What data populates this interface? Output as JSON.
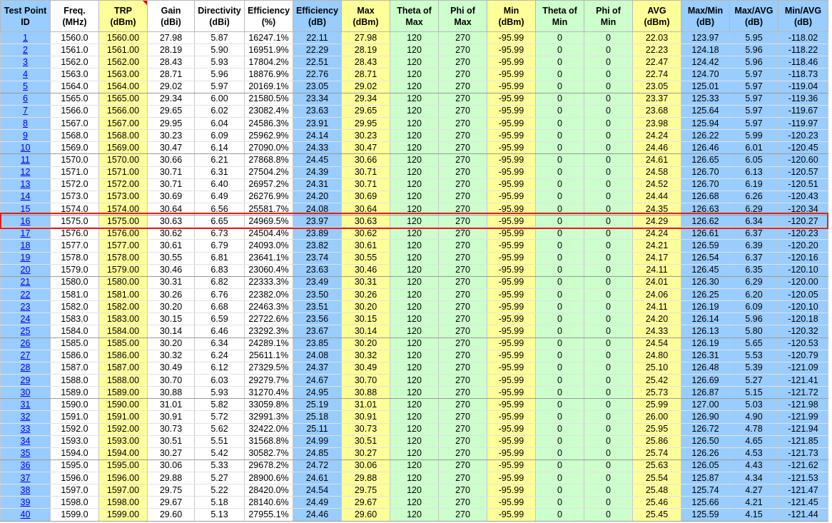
{
  "table": {
    "header": [
      [
        "Test Point",
        "ID"
      ],
      [
        "Freq.",
        "(MHz)"
      ],
      [
        "TRP",
        "(dBm)"
      ],
      [
        "Gain",
        "(dBi)"
      ],
      [
        "Directivity",
        "(dBi)"
      ],
      [
        "Efficiency",
        "(%)"
      ],
      [
        "Efficiency",
        "(dB)"
      ],
      [
        "Max",
        "(dBm)"
      ],
      [
        "Theta of",
        "Max"
      ],
      [
        "Phi of",
        "Max"
      ],
      [
        "Min",
        "(dBm)"
      ],
      [
        "Theta of",
        "Min"
      ],
      [
        "Phi of",
        "Min"
      ],
      [
        "AVG",
        "(dBm)"
      ],
      [
        "Max/Min",
        "(dB)"
      ],
      [
        "Max/AVG",
        "(dB)"
      ],
      [
        "Min/AVG",
        "(dB)"
      ]
    ],
    "rows": [
      [
        "1",
        "1560.0",
        "1560.00",
        "27.98",
        "5.87",
        "16247.1%",
        "22.11",
        "27.98",
        "120",
        "270",
        "-95.99",
        "0",
        "0",
        "22.03",
        "123.97",
        "5.95",
        "-118.02"
      ],
      [
        "2",
        "1561.0",
        "1561.00",
        "28.19",
        "5.90",
        "16951.9%",
        "22.29",
        "28.19",
        "120",
        "270",
        "-95.99",
        "0",
        "0",
        "22.23",
        "124.18",
        "5.96",
        "-118.22"
      ],
      [
        "3",
        "1562.0",
        "1562.00",
        "28.43",
        "5.93",
        "17804.2%",
        "22.51",
        "28.43",
        "120",
        "270",
        "-95.99",
        "0",
        "0",
        "22.47",
        "124.42",
        "5.96",
        "-118.46"
      ],
      [
        "4",
        "1563.0",
        "1563.00",
        "28.71",
        "5.96",
        "18876.9%",
        "22.76",
        "28.71",
        "120",
        "270",
        "-95.99",
        "0",
        "0",
        "22.74",
        "124.70",
        "5.97",
        "-118.73"
      ],
      [
        "5",
        "1564.0",
        "1564.00",
        "29.02",
        "5.97",
        "20169.1%",
        "23.05",
        "29.02",
        "120",
        "270",
        "-95.99",
        "0",
        "0",
        "23.05",
        "125.01",
        "5.97",
        "-119.04"
      ],
      [
        "6",
        "1565.0",
        "1565.00",
        "29.34",
        "6.00",
        "21580.5%",
        "23.34",
        "29.34",
        "120",
        "270",
        "-95.99",
        "0",
        "0",
        "23.37",
        "125.33",
        "5.97",
        "-119.36"
      ],
      [
        "7",
        "1566.0",
        "1566.00",
        "29.65",
        "6.02",
        "23082.4%",
        "23.63",
        "29.65",
        "120",
        "270",
        "-95.99",
        "0",
        "0",
        "23.68",
        "125.64",
        "5.97",
        "-119.67"
      ],
      [
        "8",
        "1567.0",
        "1567.00",
        "29.95",
        "6.04",
        "24586.3%",
        "23.91",
        "29.95",
        "120",
        "270",
        "-95.99",
        "0",
        "0",
        "23.98",
        "125.94",
        "5.97",
        "-119.97"
      ],
      [
        "9",
        "1568.0",
        "1568.00",
        "30.23",
        "6.09",
        "25962.9%",
        "24.14",
        "30.23",
        "120",
        "270",
        "-95.99",
        "0",
        "0",
        "24.24",
        "126.22",
        "5.99",
        "-120.23"
      ],
      [
        "10",
        "1569.0",
        "1569.00",
        "30.47",
        "6.14",
        "27090.0%",
        "24.33",
        "30.47",
        "120",
        "270",
        "-95.99",
        "0",
        "0",
        "24.46",
        "126.46",
        "6.01",
        "-120.45"
      ],
      [
        "11",
        "1570.0",
        "1570.00",
        "30.66",
        "6.21",
        "27868.8%",
        "24.45",
        "30.66",
        "120",
        "270",
        "-95.99",
        "0",
        "0",
        "24.61",
        "126.65",
        "6.05",
        "-120.60"
      ],
      [
        "12",
        "1571.0",
        "1571.00",
        "30.71",
        "6.31",
        "27504.2%",
        "24.39",
        "30.71",
        "120",
        "270",
        "-95.99",
        "0",
        "0",
        "24.58",
        "126.70",
        "6.13",
        "-120.57"
      ],
      [
        "13",
        "1572.0",
        "1572.00",
        "30.71",
        "6.40",
        "26957.2%",
        "24.31",
        "30.71",
        "120",
        "270",
        "-95.99",
        "0",
        "0",
        "24.52",
        "126.70",
        "6.19",
        "-120.51"
      ],
      [
        "14",
        "1573.0",
        "1573.00",
        "30.69",
        "6.49",
        "26276.9%",
        "24.20",
        "30.69",
        "120",
        "270",
        "-95.99",
        "0",
        "0",
        "24.44",
        "126.68",
        "6.26",
        "-120.43"
      ],
      [
        "15",
        "1574.0",
        "1574.00",
        "30.64",
        "6.56",
        "25581.7%",
        "24.08",
        "30.64",
        "120",
        "270",
        "-95.99",
        "0",
        "0",
        "24.35",
        "126.63",
        "6.29",
        "-120.34"
      ],
      [
        "16",
        "1575.0",
        "1575.00",
        "30.63",
        "6.65",
        "24969.5%",
        "23.97",
        "30.63",
        "120",
        "270",
        "-95.99",
        "0",
        "0",
        "24.29",
        "126.62",
        "6.34",
        "-120.27"
      ],
      [
        "17",
        "1576.0",
        "1576.00",
        "30.62",
        "6.73",
        "24504.4%",
        "23.89",
        "30.62",
        "120",
        "270",
        "-95.99",
        "0",
        "0",
        "24.24",
        "126.61",
        "6.37",
        "-120.23"
      ],
      [
        "18",
        "1577.0",
        "1577.00",
        "30.61",
        "6.79",
        "24093.0%",
        "23.82",
        "30.61",
        "120",
        "270",
        "-95.99",
        "0",
        "0",
        "24.21",
        "126.59",
        "6.39",
        "-120.20"
      ],
      [
        "19",
        "1578.0",
        "1578.00",
        "30.55",
        "6.81",
        "23641.1%",
        "23.74",
        "30.55",
        "120",
        "270",
        "-95.99",
        "0",
        "0",
        "24.17",
        "126.54",
        "6.37",
        "-120.16"
      ],
      [
        "20",
        "1579.0",
        "1579.00",
        "30.46",
        "6.83",
        "23060.4%",
        "23.63",
        "30.46",
        "120",
        "270",
        "-95.99",
        "0",
        "0",
        "24.11",
        "126.45",
        "6.35",
        "-120.10"
      ],
      [
        "21",
        "1580.0",
        "1580.00",
        "30.31",
        "6.82",
        "22333.3%",
        "23.49",
        "30.31",
        "120",
        "270",
        "-95.99",
        "0",
        "0",
        "24.01",
        "126.30",
        "6.29",
        "-120.00"
      ],
      [
        "22",
        "1581.0",
        "1581.00",
        "30.26",
        "6.76",
        "22382.0%",
        "23.50",
        "30.26",
        "120",
        "270",
        "-95.99",
        "0",
        "0",
        "24.06",
        "126.25",
        "6.20",
        "-120.05"
      ],
      [
        "23",
        "1582.0",
        "1582.00",
        "30.20",
        "6.68",
        "22463.3%",
        "23.51",
        "30.20",
        "120",
        "270",
        "-95.99",
        "0",
        "0",
        "24.11",
        "126.19",
        "6.09",
        "-120.10"
      ],
      [
        "24",
        "1583.0",
        "1583.00",
        "30.15",
        "6.59",
        "22722.6%",
        "23.56",
        "30.15",
        "120",
        "270",
        "-95.99",
        "0",
        "0",
        "24.20",
        "126.14",
        "5.96",
        "-120.18"
      ],
      [
        "25",
        "1584.0",
        "1584.00",
        "30.14",
        "6.46",
        "23292.3%",
        "23.67",
        "30.14",
        "120",
        "270",
        "-95.99",
        "0",
        "0",
        "24.33",
        "126.13",
        "5.80",
        "-120.32"
      ],
      [
        "26",
        "1585.0",
        "1585.00",
        "30.20",
        "6.34",
        "24289.1%",
        "23.85",
        "30.20",
        "120",
        "270",
        "-95.99",
        "0",
        "0",
        "24.54",
        "126.19",
        "5.65",
        "-120.53"
      ],
      [
        "27",
        "1586.0",
        "1586.00",
        "30.32",
        "6.24",
        "25611.1%",
        "24.08",
        "30.32",
        "120",
        "270",
        "-95.99",
        "0",
        "0",
        "24.80",
        "126.31",
        "5.53",
        "-120.79"
      ],
      [
        "28",
        "1587.0",
        "1587.00",
        "30.49",
        "6.12",
        "27329.5%",
        "24.37",
        "30.49",
        "120",
        "270",
        "-95.99",
        "0",
        "0",
        "25.10",
        "126.48",
        "5.39",
        "-121.09"
      ],
      [
        "29",
        "1588.0",
        "1588.00",
        "30.70",
        "6.03",
        "29279.7%",
        "24.67",
        "30.70",
        "120",
        "270",
        "-95.99",
        "0",
        "0",
        "25.42",
        "126.69",
        "5.27",
        "-121.41"
      ],
      [
        "30",
        "1589.0",
        "1589.00",
        "30.88",
        "5.93",
        "31270.4%",
        "24.95",
        "30.88",
        "120",
        "270",
        "-95.99",
        "0",
        "0",
        "25.73",
        "126.87",
        "5.15",
        "-121.72"
      ],
      [
        "31",
        "1590.0",
        "1590.00",
        "31.01",
        "5.82",
        "33059.8%",
        "25.19",
        "31.01",
        "120",
        "270",
        "-95.99",
        "0",
        "0",
        "25.99",
        "127.00",
        "5.03",
        "-121.98"
      ],
      [
        "32",
        "1591.0",
        "1591.00",
        "30.91",
        "5.72",
        "32991.3%",
        "25.18",
        "30.91",
        "120",
        "270",
        "-95.99",
        "0",
        "0",
        "26.00",
        "126.90",
        "4.90",
        "-121.99"
      ],
      [
        "33",
        "1592.0",
        "1592.00",
        "30.73",
        "5.62",
        "32422.0%",
        "25.11",
        "30.73",
        "120",
        "270",
        "-95.99",
        "0",
        "0",
        "25.95",
        "126.72",
        "4.78",
        "-121.94"
      ],
      [
        "34",
        "1593.0",
        "1593.00",
        "30.51",
        "5.51",
        "31568.8%",
        "24.99",
        "30.51",
        "120",
        "270",
        "-95.99",
        "0",
        "0",
        "25.86",
        "126.50",
        "4.65",
        "-121.85"
      ],
      [
        "35",
        "1594.0",
        "1594.00",
        "30.27",
        "5.42",
        "30582.7%",
        "24.85",
        "30.27",
        "120",
        "270",
        "-95.99",
        "0",
        "0",
        "25.74",
        "126.26",
        "4.53",
        "-121.73"
      ],
      [
        "36",
        "1595.0",
        "1595.00",
        "30.06",
        "5.33",
        "29678.2%",
        "24.72",
        "30.06",
        "120",
        "270",
        "-95.99",
        "0",
        "0",
        "25.63",
        "126.05",
        "4.43",
        "-121.62"
      ],
      [
        "37",
        "1596.0",
        "1596.00",
        "29.88",
        "5.27",
        "28900.6%",
        "24.61",
        "29.88",
        "120",
        "270",
        "-95.99",
        "0",
        "0",
        "25.54",
        "125.87",
        "4.34",
        "-121.53"
      ],
      [
        "38",
        "1597.0",
        "1597.00",
        "29.75",
        "5.22",
        "28420.0%",
        "24.54",
        "29.75",
        "120",
        "270",
        "-95.99",
        "0",
        "0",
        "25.48",
        "125.74",
        "4.27",
        "-121.47"
      ],
      [
        "39",
        "1598.0",
        "1598.00",
        "29.67",
        "5.18",
        "28140.6%",
        "24.49",
        "29.67",
        "120",
        "270",
        "-95.99",
        "0",
        "0",
        "25.46",
        "125.66",
        "4.21",
        "-121.45"
      ],
      [
        "40",
        "1599.0",
        "1599.00",
        "29.60",
        "5.13",
        "27955.1%",
        "24.46",
        "29.60",
        "120",
        "270",
        "-95.99",
        "0",
        "0",
        "25.45",
        "125.59",
        "4.15",
        "-121.44"
      ]
    ]
  }
}
